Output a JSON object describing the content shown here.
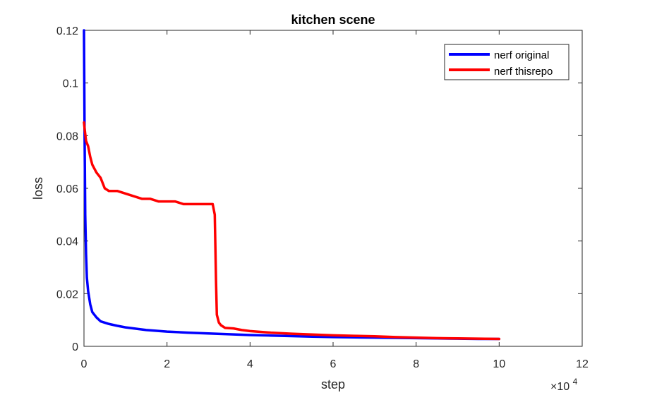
{
  "chart_data": {
    "type": "line",
    "title": "kitchen scene",
    "xlabel": "step",
    "ylabel": "loss",
    "x_exponent_label": "×10",
    "x_exponent_power": "4",
    "x_multiplier": 10000,
    "xlim": [
      0,
      120000
    ],
    "ylim": [
      0,
      0.12
    ],
    "x_ticks": [
      0,
      2,
      4,
      6,
      8,
      10,
      12
    ],
    "x_tick_labels": [
      "0",
      "2",
      "4",
      "6",
      "8",
      "10",
      "12"
    ],
    "y_ticks": [
      0,
      0.02,
      0.04,
      0.06,
      0.08,
      0.1,
      0.12
    ],
    "y_tick_labels": [
      "0",
      "0.02",
      "0.04",
      "0.06",
      "0.08",
      "0.1",
      "0.12"
    ],
    "grid": false,
    "legend_position": "top-right",
    "series": [
      {
        "name": "nerf original",
        "color": "#0000ff",
        "x": [
          0,
          150,
          300,
          500,
          700,
          1000,
          1500,
          2000,
          3000,
          4000,
          6000,
          8000,
          10000,
          15000,
          20000,
          25000,
          30000,
          35000,
          40000,
          45000,
          50000,
          55000,
          60000,
          65000,
          70000,
          75000,
          80000,
          85000,
          90000,
          95000,
          100000
        ],
        "y": [
          0.12,
          0.08,
          0.05,
          0.035,
          0.026,
          0.021,
          0.016,
          0.013,
          0.011,
          0.0095,
          0.0085,
          0.0078,
          0.0072,
          0.0062,
          0.0056,
          0.0052,
          0.0049,
          0.0046,
          0.0043,
          0.0041,
          0.0039,
          0.0037,
          0.0035,
          0.0034,
          0.0033,
          0.0032,
          0.0031,
          0.003,
          0.0029,
          0.0028,
          0.0028
        ]
      },
      {
        "name": "nerf thisrepo",
        "color": "#ff0000",
        "x": [
          0,
          200,
          500,
          1000,
          1500,
          2000,
          3000,
          4000,
          5000,
          6000,
          8000,
          10000,
          12000,
          14000,
          16000,
          18000,
          20000,
          22000,
          24000,
          26000,
          28000,
          30000,
          31000,
          31500,
          31800,
          32000,
          32500,
          33000,
          34000,
          36000,
          38000,
          40000,
          45000,
          50000,
          55000,
          60000,
          65000,
          70000,
          75000,
          80000,
          85000,
          90000,
          95000,
          100000
        ],
        "y": [
          0.085,
          0.082,
          0.078,
          0.076,
          0.072,
          0.069,
          0.066,
          0.064,
          0.06,
          0.059,
          0.059,
          0.058,
          0.057,
          0.056,
          0.056,
          0.055,
          0.055,
          0.055,
          0.054,
          0.054,
          0.054,
          0.054,
          0.054,
          0.05,
          0.025,
          0.012,
          0.009,
          0.008,
          0.007,
          0.0068,
          0.0062,
          0.0058,
          0.0052,
          0.0048,
          0.0045,
          0.0042,
          0.004,
          0.0038,
          0.0035,
          0.0033,
          0.0031,
          0.003,
          0.0029,
          0.0028
        ]
      }
    ]
  }
}
